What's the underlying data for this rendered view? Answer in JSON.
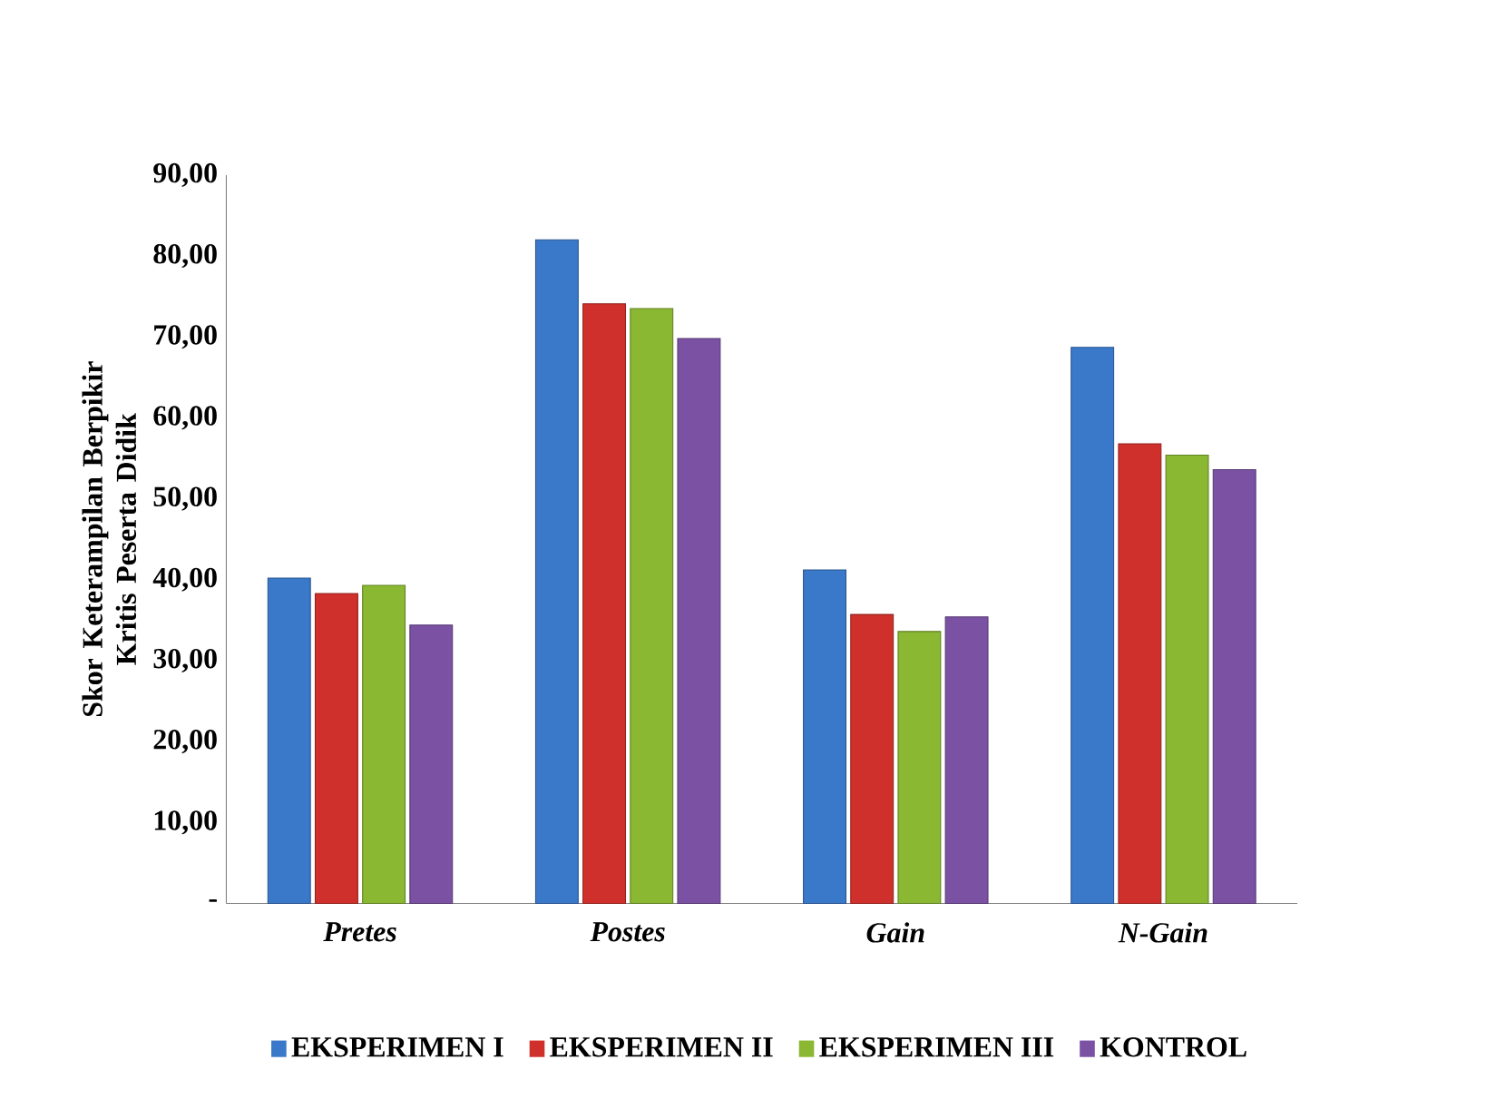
{
  "chart_data": {
    "type": "bar",
    "ylabel": "Skor Keterampilan Berpikir Kritis Peserta Didik",
    "categories": [
      "Pretes",
      "Postes",
      "Gain",
      "N-Gain"
    ],
    "series": [
      {
        "name": "EKSPERIMEN I",
        "color": "#3a78c9",
        "values": [
          40.2,
          82.0,
          41.2,
          68.7
        ]
      },
      {
        "name": "EKSPERIMEN II",
        "color": "#d0302b",
        "values": [
          38.3,
          74.1,
          35.7,
          56.8
        ]
      },
      {
        "name": "EKSPERIMEN III",
        "color": "#8ab832",
        "values": [
          39.3,
          73.5,
          33.6,
          55.4
        ]
      },
      {
        "name": "KONTROL",
        "color": "#7b52a3",
        "values": [
          34.4,
          69.8,
          35.4,
          53.6
        ]
      }
    ],
    "ylim": [
      0,
      90
    ],
    "yticks": [
      {
        "value": 0,
        "label": "-"
      },
      {
        "value": 10,
        "label": "10,00"
      },
      {
        "value": 20,
        "label": "20,00"
      },
      {
        "value": 30,
        "label": "30,00"
      },
      {
        "value": 40,
        "label": "40,00"
      },
      {
        "value": 50,
        "label": "50,00"
      },
      {
        "value": 60,
        "label": "60,00"
      },
      {
        "value": 70,
        "label": "70,00"
      },
      {
        "value": 80,
        "label": "80,00"
      },
      {
        "value": 90,
        "label": "90,00"
      }
    ],
    "grid": false,
    "legend": "bottom"
  }
}
